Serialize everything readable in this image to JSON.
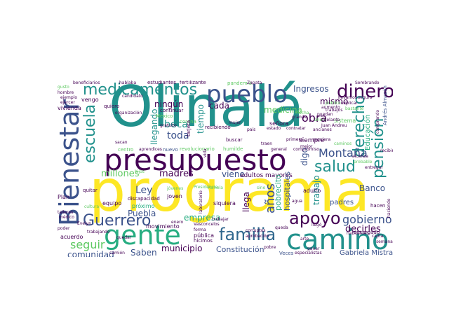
{
  "words": {
    "olinala": "Olinalá",
    "programa": "programa",
    "presupuesto": "presupuesto",
    "camino": "camino",
    "gente": "gente",
    "bienestar": "Bienestar",
    "pueblo": "pueblo",
    "medicamentos": "medicamentos",
    "dinero": "dinero",
    "familia": "familia",
    "guerrero": "Guerrero",
    "apoyo": "apoyo",
    "salud": "salud",
    "escuela": "escuela",
    "pension": "pensión",
    "derecho": "derecho",
    "anos": "años",
    "gobierno": "gobierno",
    "montana": "Montaña",
    "seguir": "seguir",
    "millones": "millones",
    "ingresos": "Ingresos",
    "mismo": "mismo",
    "obra": "obra",
    "beca": "beca",
    "toda": "toda",
    "madres": "madres",
    "ley": "Ley",
    "puebla": "Puebla",
    "viene": "viene",
    "municipio": "municipio",
    "saben": "Saben",
    "comunidad": "comunidad",
    "constitucion": "Constitución",
    "decirles": "decirles",
    "banco": "Banco",
    "educacion": "Educación",
    "medicina": "medicina",
    "empresa": "empresa",
    "llegando": "llegando",
    "ningun": "ningún",
    "cada": "cada",
    "tiempo": "tiempo",
    "adultos_mayores": "adultos mayores",
    "trabajo": "trabajo",
    "hospitales": "hospitales",
    "pobrecito": "pobrecito",
    "digo": "digo",
    "llega": "llega",
    "gabriela_mistral": "Gabriela Mistral",
    "padres": "padres",
    "vivienda": "vivienda",
    "cultura": "cultura",
    "jovenes": "jóvenes",
    "joven": "joven",
    "equipo": "equipo",
    "movimiento": "movimiento",
    "plan": "Plan",
    "quitar": "quitar",
    "proximo": "próximo",
    "discapacidad": "discapacidad",
    "siquiera": "siquiera",
    "adulto": "adulto",
    "pamela": "Pamela",
    "sino": "sino",
    "hacen": "hacen",
    "agua": "agua",
    "publica": "pública",
    "forma": "forma",
    "trabajar": "trabajar",
    "nuevo": "nuevo",
    "revolucionario": "revolucionario",
    "humilde": "humilde",
    "general": "general",
    "compromiso": "compromiso",
    "entregar": "entregar",
    "sistema": "sistema",
    "siempre": "siempre",
    "mejor": "mejor",
    "senora": "señora",
    "mujer": "mujer",
    "pais": "país",
    "buscar": "buscar",
    "vengo": "vengo",
    "quiero": "quiero",
    "continuar": "continuar",
    "mexico": "México",
    "corona": "corona",
    "recibiendo": "recibiendo",
    "enero": "enero",
    "organizacion": "organización",
    "escuela_2": "escuela",
    "estudiantes": "estudiantes",
    "fertilizante": "fertilizante",
    "pandemia": "pandemia",
    "zapata": "Zapata",
    "juan_andreu": "Juan Andreu",
    "andres_almazan": "Andrés Almazán",
    "sembrando": "Sembrando",
    "beneficiarios": "beneficiarios",
    "hablaba": "hablaba",
    "llevamos": "llevamos",
    "seguro": "seguro",
    "hombre": "hombre",
    "gusto": "gusto",
    "ejemplo": "ejemplo",
    "ejercer": "ejercer",
    "poder": "poder",
    "acuerdo": "acuerdo",
    "trabajando": "trabajando",
    "hicimos": "hicimos",
    "corruptos": "corruptos",
    "quedar": "quedar",
    "camion": "camión",
    "veces": "Veces",
    "especialistas": "especialistas",
    "pobre": "pobre",
    "arte": "arte",
    "aprobacion": "aprobación",
    "vasconcelos": "Vasconcelos",
    "laboratorio": "laboratorio",
    "tarjeta": "tarjeta",
    "aprendices": "aprendices",
    "centro": "centro",
    "vida": "vida",
    "presidencia": "Presidencia",
    "talleres": "talleres",
    "medico": "médico",
    "evelyn": "Evelyn",
    "queda": "queda",
    "recibir": "recibir",
    "encargado": "encargado",
    "habitantes": "habitantes",
    "haciendo": "haciendo",
    "cajita": "cajita",
    "semana": "semana",
    "gratuito": "gratuito",
    "candidato": "candidato",
    "trabajos": "trabajos",
    "explicar": "explicar",
    "puedan": "puedan",
    "requiera": "requiera",
    "ancianos": "ancianos",
    "contratar": "contratar",
    "traen": "traen",
    "ahora": "ahora",
    "primera": "primera",
    "aumento": "aumento",
    "publico": "público",
    "bastante": "bastante",
    "adelante": "adelante",
    "comprando": "comprando",
    "caminos": "caminos",
    "mucha": "mucha",
    "alcanza": "alcanza",
    "probable": "probable",
    "ganar": "ganar",
    "sacan": "sacan",
    "hijos": "hijos",
    "llegó": "llegó",
    "estado": "estado",
    "grande": "grande"
  },
  "colors": [
    "#440154",
    "#3b528b",
    "#21918c",
    "#27ad81",
    "#5ec962",
    "#fde725",
    "#31688e",
    "#35b779"
  ]
}
